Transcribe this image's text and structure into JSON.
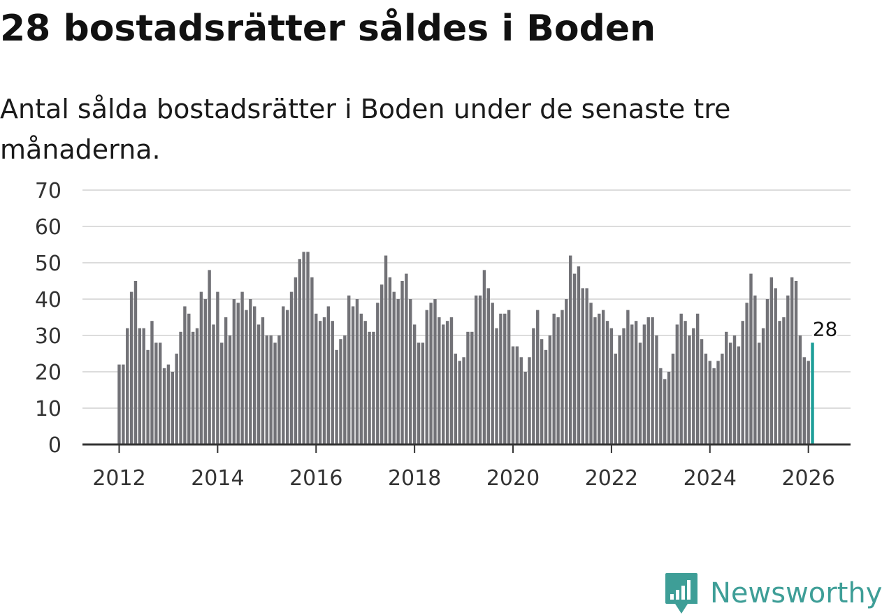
{
  "title": "28 bostadsrätter såldes i Boden",
  "subtitle": "Antal sålda bostadsrätter i Boden under de senaste tre månaderna.",
  "brand": {
    "name": "Newsworthy",
    "color": "#3e9e97"
  },
  "colors": {
    "bar": "#727277",
    "highlight": "#1d9e98",
    "grid": "#dcdcdc",
    "axis": "#333333"
  },
  "chart_data": {
    "type": "bar",
    "title": "28 bostadsrätter såldes i Boden",
    "xlabel": "",
    "ylabel": "",
    "ylim": [
      0,
      70
    ],
    "yticks": [
      "0",
      "10",
      "20",
      "30",
      "40",
      "50",
      "60",
      "70"
    ],
    "xticks": [
      "2012",
      "2014",
      "2016",
      "2018",
      "2020",
      "2022",
      "2024",
      "2026"
    ],
    "start": {
      "year": 2012,
      "month": 1
    },
    "highlight": {
      "label": "28",
      "value": 28,
      "index": 169
    },
    "values": [
      22,
      22,
      32,
      42,
      45,
      32,
      32,
      26,
      34,
      28,
      28,
      21,
      22,
      20,
      25,
      31,
      38,
      36,
      31,
      32,
      42,
      40,
      48,
      33,
      42,
      28,
      35,
      30,
      40,
      39,
      42,
      37,
      40,
      38,
      33,
      35,
      30,
      30,
      28,
      30,
      38,
      37,
      42,
      46,
      51,
      53,
      53,
      46,
      36,
      34,
      35,
      38,
      34,
      26,
      29,
      30,
      41,
      38,
      40,
      36,
      34,
      31,
      31,
      39,
      44,
      52,
      46,
      42,
      40,
      45,
      47,
      40,
      33,
      28,
      28,
      37,
      39,
      40,
      35,
      33,
      34,
      35,
      25,
      23,
      24,
      31,
      31,
      41,
      41,
      48,
      43,
      39,
      32,
      36,
      36,
      37,
      27,
      27,
      24,
      20,
      24,
      32,
      37,
      29,
      26,
      30,
      36,
      35,
      37,
      40,
      52,
      47,
      49,
      43,
      43,
      39,
      35,
      36,
      37,
      34,
      32,
      25,
      30,
      32,
      37,
      33,
      34,
      28,
      33,
      35,
      35,
      30,
      21,
      18,
      20,
      25,
      33,
      36,
      34,
      30,
      32,
      36,
      29,
      25,
      23,
      21,
      23,
      25,
      31,
      28,
      30,
      27,
      34,
      39,
      47,
      41,
      28,
      32,
      40,
      46,
      43,
      34,
      35,
      41,
      46,
      45,
      30,
      24,
      23,
      28
    ]
  }
}
